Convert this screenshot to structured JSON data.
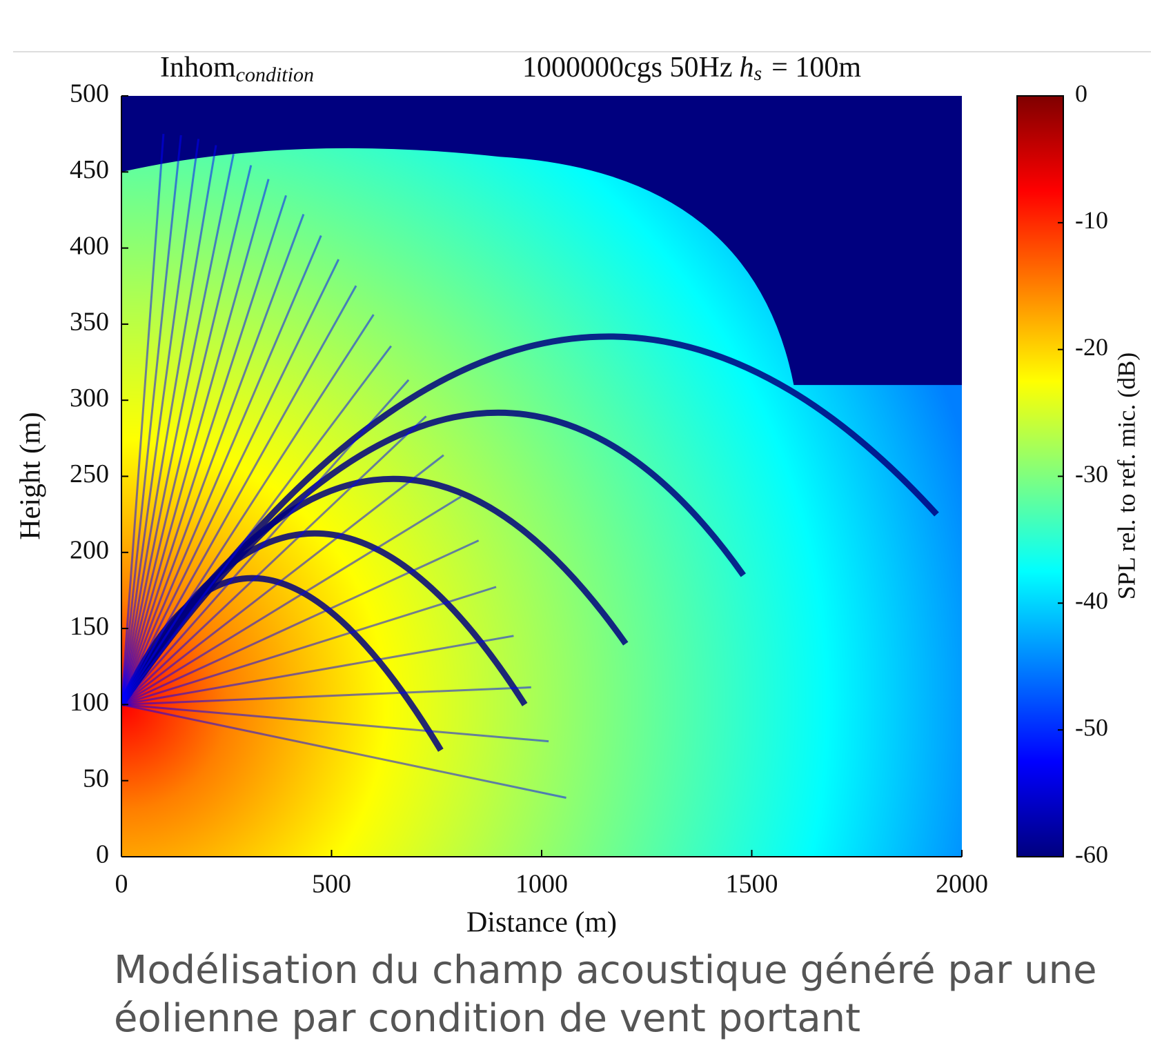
{
  "chart_data": {
    "type": "heatmap",
    "title_left": {
      "text": "Inhom",
      "sub": "condition"
    },
    "title_right": {
      "text": "1000000cgs 50Hz",
      "var": "h",
      "sub": "s",
      "rest": "= 100m"
    },
    "xlabel": "Distance (m)",
    "ylabel": "Height (m)",
    "xlim": [
      0,
      2000
    ],
    "xticks": [
      0,
      500,
      1000,
      1500,
      2000
    ],
    "ylim": [
      0,
      500
    ],
    "yticks": [
      0,
      50,
      100,
      150,
      200,
      250,
      300,
      350,
      400,
      450,
      500
    ],
    "colorbar": {
      "label": "SPL rel. to ref. mic. (dB)",
      "clim": [
        -60,
        0
      ],
      "ticks": [
        0,
        -10,
        -20,
        -30,
        -40,
        -50,
        -60
      ],
      "colormap": [
        "#00007f",
        "#0000ff",
        "#007fff",
        "#00ffff",
        "#7fff7f",
        "#ffff00",
        "#ff7f00",
        "#ff0000",
        "#7f0000"
      ]
    }
  },
  "caption": "Modélisation du champ acoustique généré par une éolienne par condition de vent portant"
}
